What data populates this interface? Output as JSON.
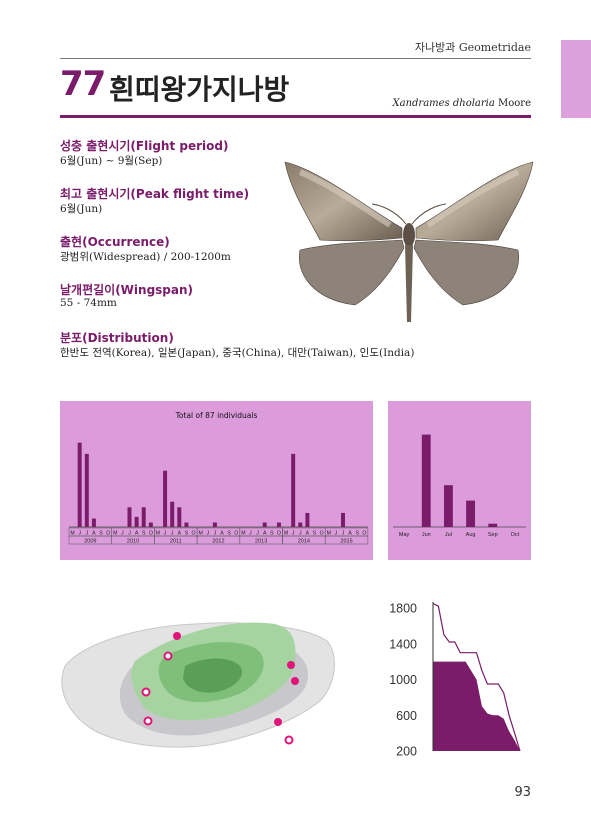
{
  "header": {
    "family": "자나방과 Geometridae",
    "number": "77",
    "korean_name": "흰띠왕가지나방",
    "scientific_genus_species": "Xandrames dholaria",
    "author": "Moore"
  },
  "info": [
    {
      "label": "성충 출현시기(Flight period)",
      "value": "6월(Jun) ~ 9월(Sep)"
    },
    {
      "label": "최고 출현시기(Peak flight time)",
      "value": "6월(Jun)"
    },
    {
      "label": "출현(Occurrence)",
      "value": "광범위(Widespread) / 200-1200m"
    },
    {
      "label": "날개편길이(Wingspan)",
      "value": "55 - 74mm"
    },
    {
      "label": "분포(Distribution)",
      "value": "한반도 전역(Korea), 일본(Japan), 중국(China), 대만(Taiwan), 인도(India)"
    }
  ],
  "colors": {
    "accent": "#7a1c6a",
    "chart_bg": "#dc9cdc",
    "bar": "#7a1c6a"
  },
  "chart_data": [
    {
      "type": "bar",
      "title": "Total of 87 individuals",
      "month_labels": [
        "M",
        "J",
        "J",
        "A",
        "S",
        "O"
      ],
      "years": [
        "2009",
        "2010",
        "2011",
        "2012",
        "2013",
        "2014",
        "2015"
      ],
      "values": [
        [
          0,
          15,
          13,
          1.5,
          0,
          0
        ],
        [
          0,
          0,
          3.5,
          1.8,
          3.5,
          0.8
        ],
        [
          0,
          10,
          4.5,
          3.5,
          0.8,
          0
        ],
        [
          0,
          0,
          0.8,
          0,
          0,
          0
        ],
        [
          0,
          0,
          0,
          0.8,
          0,
          0.8
        ],
        [
          0,
          13,
          0.8,
          2.5,
          0,
          0
        ],
        [
          0,
          0,
          2.5,
          0,
          0,
          0
        ]
      ],
      "ylim": [
        0,
        16
      ]
    },
    {
      "type": "bar",
      "categories": [
        "May",
        "Jun",
        "Jul",
        "Aug",
        "Sep",
        "Oct"
      ],
      "values": [
        0,
        42,
        19,
        12,
        1.5,
        0
      ],
      "ylim": [
        0,
        50
      ]
    },
    {
      "type": "area",
      "y_ticks": [
        "1800",
        "1400",
        "1000",
        "600",
        "200"
      ],
      "ylim": [
        200,
        1800
      ],
      "x": [
        0,
        1,
        2,
        3,
        4,
        5,
        6,
        7,
        8,
        9,
        10,
        11,
        12,
        13,
        14,
        15,
        16
      ],
      "max_elevation": [
        1850,
        1820,
        1500,
        1420,
        1420,
        1300,
        1300,
        1300,
        1300,
        1100,
        950,
        950,
        950,
        850,
        600,
        400,
        200
      ],
      "occupied_elevation": [
        1200,
        1200,
        1200,
        1200,
        1200,
        1200,
        1200,
        1100,
        1000,
        700,
        620,
        600,
        600,
        560,
        420,
        320,
        200
      ]
    }
  ],
  "map": {
    "icon": "jeju-island-map"
  },
  "page_number": "93"
}
